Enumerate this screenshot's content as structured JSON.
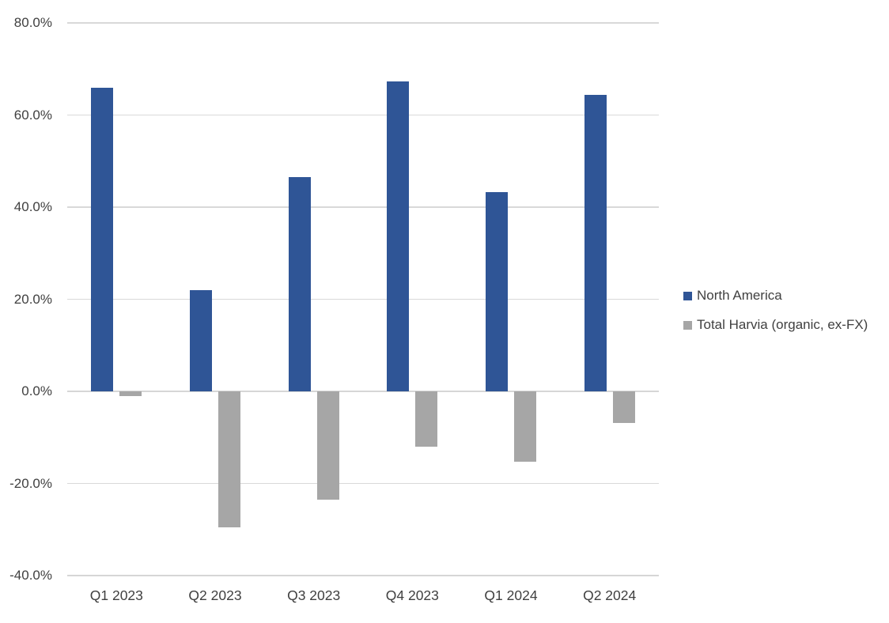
{
  "chart_data": {
    "type": "bar",
    "title": "",
    "xlabel": "",
    "ylabel": "",
    "categories": [
      "Q1 2023",
      "Q2 2023",
      "Q3 2023",
      "Q4 2023",
      "Q1 2024",
      "Q2 2024"
    ],
    "series": [
      {
        "name": "North America",
        "color": "#2F5596",
        "values": [
          66.0,
          21.9,
          46.6,
          67.3,
          43.3,
          64.4
        ]
      },
      {
        "name": "Total Harvia (organic, ex-FX)",
        "color": "#A6A6A6",
        "values": [
          -1.0,
          -29.6,
          -23.5,
          -12.1,
          -15.2,
          -6.8
        ]
      }
    ],
    "y_axis": {
      "min": -40,
      "max": 80,
      "step": 20,
      "ticks": [
        {
          "value": 80,
          "label": "80.0%"
        },
        {
          "value": 60,
          "label": "60.0%"
        },
        {
          "value": 40,
          "label": "40.0%"
        },
        {
          "value": 20,
          "label": "20.0%"
        },
        {
          "value": 0,
          "label": "0.0%"
        },
        {
          "value": -20,
          "label": "-20.0%"
        },
        {
          "value": -40,
          "label": "-40.0%"
        }
      ],
      "format": "percent_one_decimal"
    },
    "grid": true,
    "legend_position": "right",
    "colors": {
      "gridline": "#D9D9D9",
      "axis_line": "#D6D6D6",
      "text": "#404040",
      "background": "#FFFFFF"
    }
  }
}
